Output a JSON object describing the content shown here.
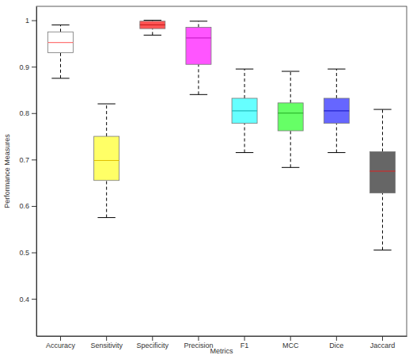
{
  "chart_data": {
    "type": "box",
    "x_label": "Metrics",
    "y_label": "Performance Measures",
    "categories": [
      "Accuracy",
      "Sensitivity",
      "Specificity",
      "Precision",
      "F1",
      "MCC",
      "Dice",
      "Jaccard"
    ],
    "values": [
      {
        "low": 0.875,
        "q1": 0.93,
        "median": 0.952,
        "q3": 0.975,
        "high": 0.99
      },
      {
        "low": 0.575,
        "q1": 0.655,
        "median": 0.698,
        "q3": 0.75,
        "high": 0.82
      },
      {
        "low": 0.968,
        "q1": 0.982,
        "median": 0.99,
        "q3": 0.998,
        "high": 1.0
      },
      {
        "low": 0.84,
        "q1": 0.905,
        "median": 0.962,
        "q3": 0.985,
        "high": 0.998
      },
      {
        "low": 0.715,
        "q1": 0.778,
        "median": 0.805,
        "q3": 0.832,
        "high": 0.895
      },
      {
        "low": 0.683,
        "q1": 0.762,
        "median": 0.8,
        "q3": 0.822,
        "high": 0.89
      },
      {
        "low": 0.715,
        "q1": 0.778,
        "median": 0.805,
        "q3": 0.832,
        "high": 0.895
      },
      {
        "low": 0.505,
        "q1": 0.628,
        "median": 0.675,
        "q3": 0.717,
        "high": 0.808
      }
    ],
    "colors": [
      "#ffffff",
      "#ffff66",
      "#ff5555",
      "#ff55ff",
      "#66ffff",
      "#66ff66",
      "#6666ff",
      "#666666"
    ],
    "ylim": [
      0.32,
      1.03
    ],
    "yticks": [
      0.4,
      0.5,
      0.6,
      0.7,
      0.8,
      0.9,
      1
    ],
    "grid": false
  }
}
